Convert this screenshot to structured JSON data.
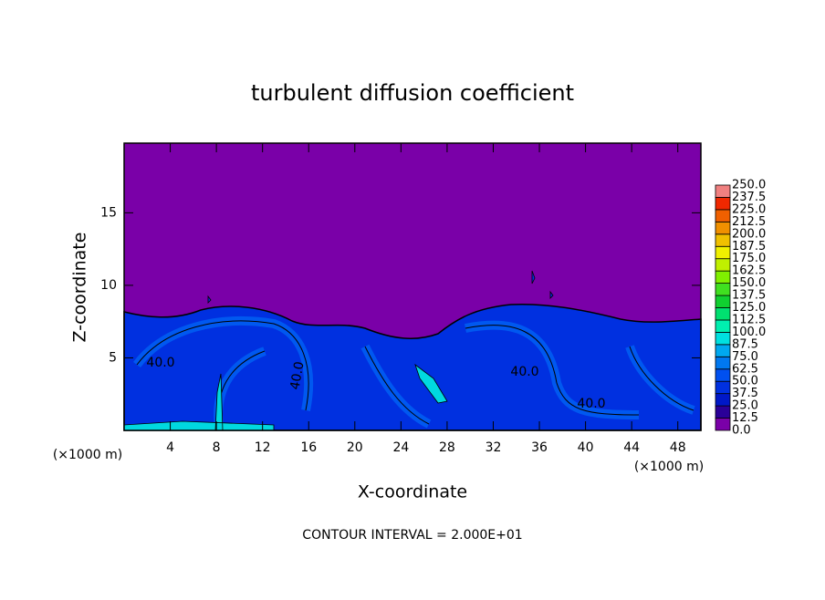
{
  "chart_data": {
    "type": "contour",
    "title": "turbulent diffusion coefficient",
    "x_label": "X-coordinate",
    "y_label": "Z-coordinate",
    "x_unit_label": "(×1000 m)",
    "x_unit_label_right": "(×1000 m)",
    "footnote": "CONTOUR INTERVAL = 2.000E+01",
    "xlim": [
      0,
      50
    ],
    "xticks": [
      4,
      8,
      12,
      16,
      20,
      24,
      28,
      32,
      36,
      40,
      44,
      48
    ],
    "ylim": [
      0,
      19.8
    ],
    "yticks": [
      5,
      10,
      15
    ],
    "background_color": "#7a00a8",
    "contour_labels": [
      {
        "value": 40,
        "label": "40.0"
      },
      {
        "value": 40,
        "label": "40.0"
      },
      {
        "value": 40,
        "label": "40.0"
      },
      {
        "value": 40,
        "label": "40.0"
      }
    ],
    "colorbar": {
      "levels": [
        {
          "value": 0,
          "label": "0.0"
        },
        {
          "value": 12.5,
          "label": "12.5"
        },
        {
          "value": 25,
          "label": "25.0"
        },
        {
          "value": 37.5,
          "label": "37.5"
        },
        {
          "value": 50,
          "label": "50.0"
        },
        {
          "value": 62.5,
          "label": "62.5"
        },
        {
          "value": 75,
          "label": "75.0"
        },
        {
          "value": 87.5,
          "label": "87.5"
        },
        {
          "value": 100,
          "label": "100.0"
        },
        {
          "value": 112.5,
          "label": "112.5"
        },
        {
          "value": 125,
          "label": "125.0"
        },
        {
          "value": 137.5,
          "label": "137.5"
        },
        {
          "value": 150,
          "label": "150.0"
        },
        {
          "value": 162.5,
          "label": "162.5"
        },
        {
          "value": 175,
          "label": "175.0"
        },
        {
          "value": 187.5,
          "label": "187.5"
        },
        {
          "value": 200,
          "label": "200.0"
        },
        {
          "value": 212.5,
          "label": "212.5"
        },
        {
          "value": 225,
          "label": "225.0"
        },
        {
          "value": 237.5,
          "label": "237.5"
        },
        {
          "value": 250,
          "label": "250.0"
        }
      ],
      "colors": [
        "#7a00a8",
        "#2a0098",
        "#0018c8",
        "#0030e0",
        "#0050f0",
        "#0078f0",
        "#00a8f0",
        "#00e0e0",
        "#00f0b0",
        "#00e070",
        "#10d030",
        "#40e020",
        "#80f000",
        "#c0f000",
        "#f0f000",
        "#f0c000",
        "#f09000",
        "#f06000",
        "#f02800",
        "#f08080"
      ]
    }
  }
}
